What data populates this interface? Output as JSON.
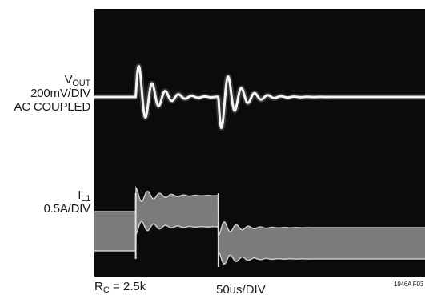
{
  "chart_data": {
    "type": "line",
    "xlabel": "50us/DIV",
    "grid": false,
    "x_div": 50,
    "x_unit": "us",
    "x_range_us": [
      0,
      400
    ],
    "load_steps_us": [
      50,
      150
    ],
    "series": [
      {
        "name_main": "V",
        "name_sub": "OUT",
        "scale": "200mV/DIV",
        "coupling": "AC COUPLED",
        "description": "output voltage ringing after each load step"
      },
      {
        "name_main": "I",
        "name_sub": "L1",
        "scale": "0.5A/DIV",
        "description": "inductor current band changes level at each step"
      }
    ],
    "annotation": {
      "main": "R",
      "sub": "C",
      "value": " = 2.5k"
    },
    "figure_id": "1946A F03"
  }
}
